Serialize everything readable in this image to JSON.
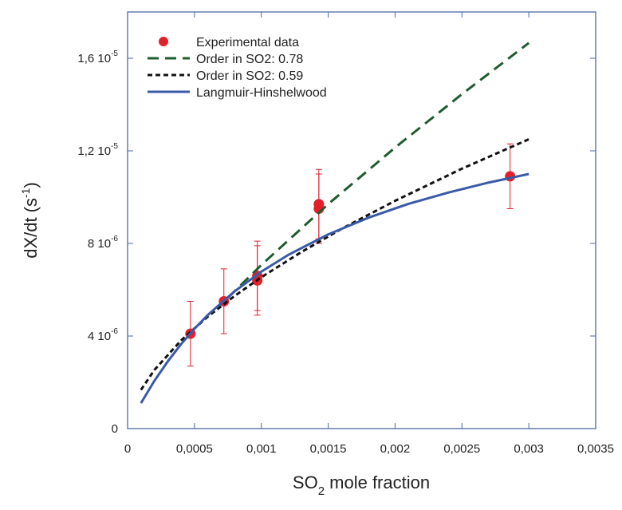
{
  "chart_data": {
    "type": "line",
    "x_label": {
      "text": "SO",
      "sub": "2",
      "tail": " mole fraction"
    },
    "y_label": {
      "text": "dX/dt (s",
      "sup": "-1",
      "tail": ")"
    },
    "xlim": [
      0,
      0.0035
    ],
    "ylim": [
      0,
      1.8e-05
    ],
    "xticks": [
      0,
      {
        "value": 0.0005,
        "label": "0,0005"
      },
      {
        "value": 0.001,
        "label": "0,001"
      },
      {
        "value": 0.0015,
        "label": "0,0015"
      },
      {
        "value": 0.002,
        "label": "0,002"
      },
      {
        "value": 0.0025,
        "label": "0,0025"
      },
      {
        "value": 0.003,
        "label": "0,003"
      },
      {
        "value": 0.0035,
        "label": "0,0035"
      }
    ],
    "yticks": [
      0,
      {
        "value": 4e-06,
        "label": "4 10",
        "exponent": "-6"
      },
      {
        "value": 8e-06,
        "label": "8 10",
        "exponent": "-6"
      },
      {
        "value": 1.2e-05,
        "label": "1,2 10",
        "exponent": "-5"
      },
      {
        "value": 1.6e-05,
        "label": "1,6 10",
        "exponent": "-5"
      }
    ],
    "legend": "upper left",
    "series": [
      {
        "name": "Experimental data",
        "color": "#e3202a",
        "style": "markers",
        "x": [
          0.00047,
          0.00072,
          0.00097,
          0.00097,
          0.00143,
          0.00143,
          0.00286
        ],
        "values": [
          4.1e-06,
          5.5e-06,
          6.6e-06,
          6.4e-06,
          9.7e-06,
          9.5e-06,
          1.09e-05
        ],
        "errors": [
          1.4e-06,
          1.4e-06,
          1.5e-06,
          1.5e-06,
          1.5e-06,
          1.5e-06,
          1.4e-06
        ]
      },
      {
        "name": "Order in SO2: 0.78",
        "color": "#1f5c2e",
        "style": "long-dash",
        "x": [
          0.00075,
          0.001,
          0.0015,
          0.002,
          0.0025,
          0.003
        ],
        "values": [
          5.65e-06,
          7.07e-06,
          9.7e-06,
          1.214e-05,
          1.445e-05,
          1.666e-05
        ]
      },
      {
        "name": "Order in SO2: 0.59",
        "color": "#111111",
        "style": "short-dash",
        "x": [
          0.0001,
          0.0002,
          0.0004,
          0.0006,
          0.0008,
          0.001,
          0.0013,
          0.0016,
          0.002,
          0.0025,
          0.003
        ],
        "values": [
          1.67e-06,
          2.53e-06,
          3.81e-06,
          4.84e-06,
          5.73e-06,
          6.54e-06,
          7.63e-06,
          8.63e-06,
          9.84e-06,
          1.123e-05,
          1.25e-05
        ]
      },
      {
        "name": "Langmuir-Hinshelwood",
        "color": "#3a5aa8",
        "style": "solid",
        "x": [
          0.0001,
          0.0002,
          0.0003,
          0.0004,
          0.0005,
          0.0006,
          0.0008,
          0.001,
          0.0012,
          0.0015,
          0.0018,
          0.0021,
          0.0024,
          0.0027,
          0.003
        ],
        "values": [
          1.1e-06,
          2.06e-06,
          2.9e-06,
          3.65e-06,
          4.31e-06,
          4.91e-06,
          5.93e-06,
          6.78e-06,
          7.5e-06,
          8.39e-06,
          9.11e-06,
          9.71e-06,
          1.02e-05,
          1.063e-05,
          1.1e-05
        ]
      }
    ]
  }
}
